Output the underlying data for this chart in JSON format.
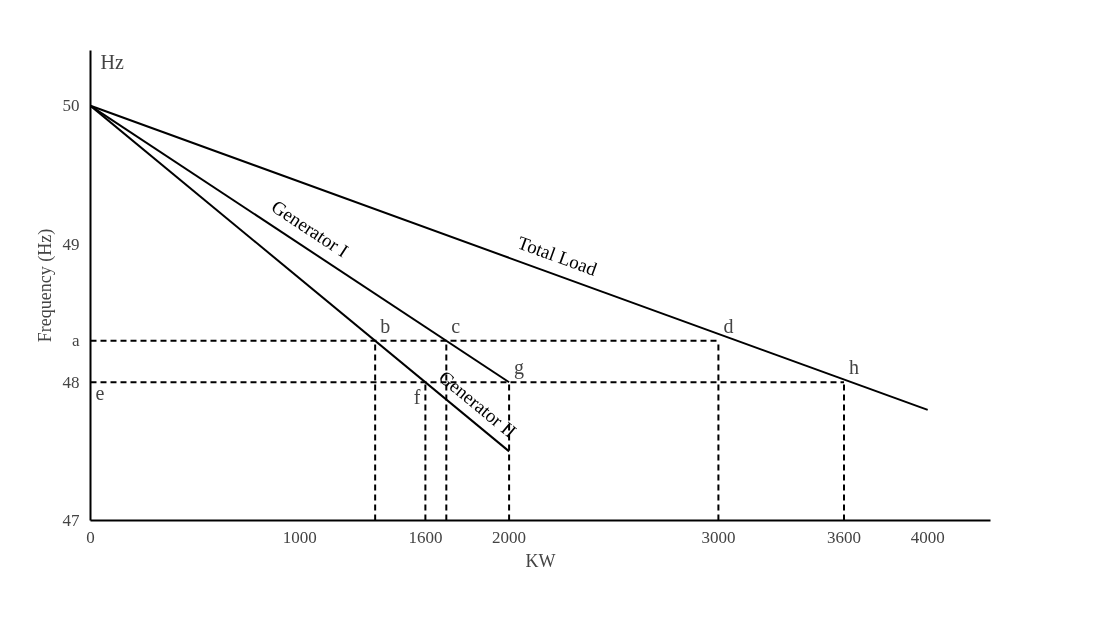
{
  "chart_data": {
    "type": "line",
    "xlabel": "KW",
    "ylabel": "Frequency (Hz)",
    "xlim": [
      0,
      4300
    ],
    "ylim": [
      47,
      50.4
    ],
    "xticks": [
      0,
      1000,
      1600,
      2000,
      3000,
      3600,
      4000
    ],
    "yticks": [
      47,
      48,
      {
        "value": 48.3,
        "label": "a"
      },
      49,
      50
    ],
    "grid": false,
    "marker": "none",
    "line_style": "solid",
    "series": [
      {
        "name": "Total Load",
        "color": "#000000",
        "x": [
          0,
          4000
        ],
        "values": [
          50,
          47.8
        ]
      },
      {
        "name": "Generator I",
        "color": "#000000",
        "x": [
          0,
          2000
        ],
        "values": [
          50,
          48
        ]
      },
      {
        "name": "Generator II",
        "color": "#000000",
        "x": [
          0,
          2000
        ],
        "values": [
          50,
          47.5
        ]
      },
      {
        "color": "#000000",
        "line_style": "dashed",
        "x": [
          0,
          3000
        ],
        "values": [
          48.3,
          48.3
        ]
      },
      {
        "color": "#000000",
        "line_style": "dashed",
        "x": [
          0,
          3600
        ],
        "values": [
          48,
          48
        ]
      },
      {
        "color": "#000000",
        "line_style": "dashed",
        "x": [
          1360,
          1360
        ],
        "values": [
          47,
          48.3
        ]
      },
      {
        "color": "#000000",
        "line_style": "dashed",
        "x": [
          1600,
          1600
        ],
        "values": [
          47,
          48
        ]
      },
      {
        "color": "#000000",
        "line_style": "dashed",
        "x": [
          1700,
          1700
        ],
        "values": [
          47,
          48.3
        ]
      },
      {
        "color": "#000000",
        "line_style": "dashed",
        "x": [
          2000,
          2000
        ],
        "values": [
          47,
          48
        ]
      },
      {
        "color": "#000000",
        "line_style": "dashed",
        "x": [
          3000,
          3000
        ],
        "values": [
          47,
          48.3
        ]
      },
      {
        "color": "#000000",
        "line_style": "dashed",
        "x": [
          3600,
          3600
        ],
        "values": [
          47,
          48
        ]
      }
    ],
    "annotations": [
      "Hz",
      {
        "text": "b",
        "x": 1360,
        "y": 48.3
      },
      {
        "text": "c",
        "x": 1700,
        "y": 48.3
      },
      {
        "text": "d",
        "x": 3000,
        "y": 48.3
      },
      {
        "text": "e",
        "x": 0,
        "y": 48
      },
      {
        "text": "f",
        "x": 1600,
        "y": 48
      },
      {
        "text": "g",
        "x": 2000,
        "y": 48
      },
      {
        "text": "h",
        "x": 3600,
        "y": 48
      }
    ]
  }
}
